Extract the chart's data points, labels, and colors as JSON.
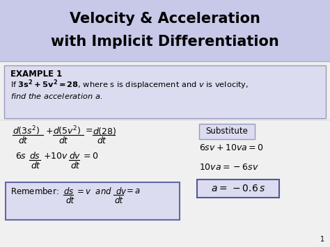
{
  "title_line1": "Velocity & Acceleration",
  "title_line2": "with Implicit Differentiation",
  "title_bg": "#c8c8e8",
  "slide_bg": "#f0f0f0",
  "example_bg": "#dcdcf0",
  "example_border": "#9999bb",
  "example_label": "EXAMPLE 1",
  "page_num": "1",
  "substitute_box_color": "#dcdcf0",
  "substitute_box_border": "#9999bb",
  "remember_box_bg": "#dcdcf0",
  "remember_box_border": "#6666aa",
  "answer_box_bg": "#dcdcf0",
  "answer_box_border": "#555599"
}
